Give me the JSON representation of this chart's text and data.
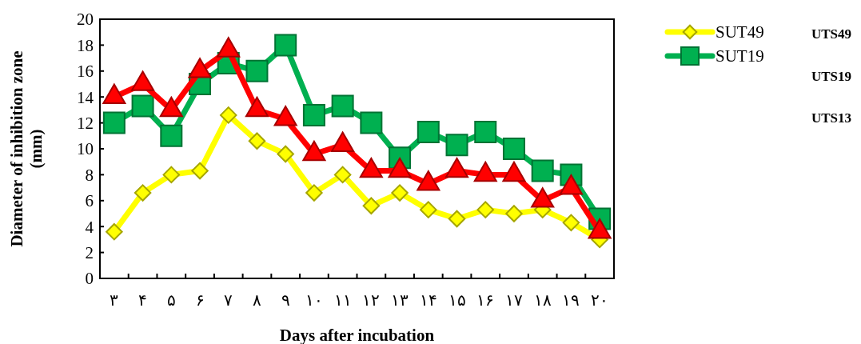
{
  "chart_data": {
    "type": "line",
    "xlabel": "Days after incubation",
    "ylabel": "Diameter of inhibition zone (mm)",
    "categories": [
      "۳",
      "۴",
      "۵",
      "۶",
      "۷",
      "۸",
      "۹",
      "۱۰",
      "۱۱",
      "۱۲",
      "۱۳",
      "۱۴",
      "۱۵",
      "۱۶",
      "۱۷",
      "۱۸",
      "۱۹",
      "۲۰"
    ],
    "series": [
      {
        "name": "SUT49",
        "color": "#ffff00",
        "marker": "diamond",
        "values": [
          3.6,
          6.6,
          8,
          8.3,
          12.6,
          10.6,
          9.6,
          6.6,
          8,
          5.6,
          6.6,
          5.3,
          4.6,
          5.3,
          5,
          5.3,
          4.3,
          3
        ]
      },
      {
        "name": "SUT19",
        "color": "#00b050",
        "marker": "square",
        "values": [
          12,
          13.3,
          11,
          15,
          16.6,
          16,
          18,
          12.6,
          13.3,
          12,
          9.3,
          11.3,
          10.3,
          11.3,
          10,
          8.3,
          8,
          4.6
        ]
      },
      {
        "color": "#ff0000",
        "marker": "triangle",
        "values": [
          14,
          15,
          13,
          16,
          17.6,
          13,
          12.3,
          9.6,
          10.3,
          8.3,
          8.3,
          7.3,
          8.3,
          8,
          8,
          6,
          7,
          3.6
        ]
      }
    ],
    "ylim": [
      0,
      20
    ],
    "yticks": [
      0,
      2,
      4,
      6,
      8,
      10,
      12,
      14,
      16,
      18,
      20
    ],
    "grid": false,
    "legend": "right",
    "annotations": [
      "UTS49",
      "UTS19",
      "UTS13"
    ]
  }
}
